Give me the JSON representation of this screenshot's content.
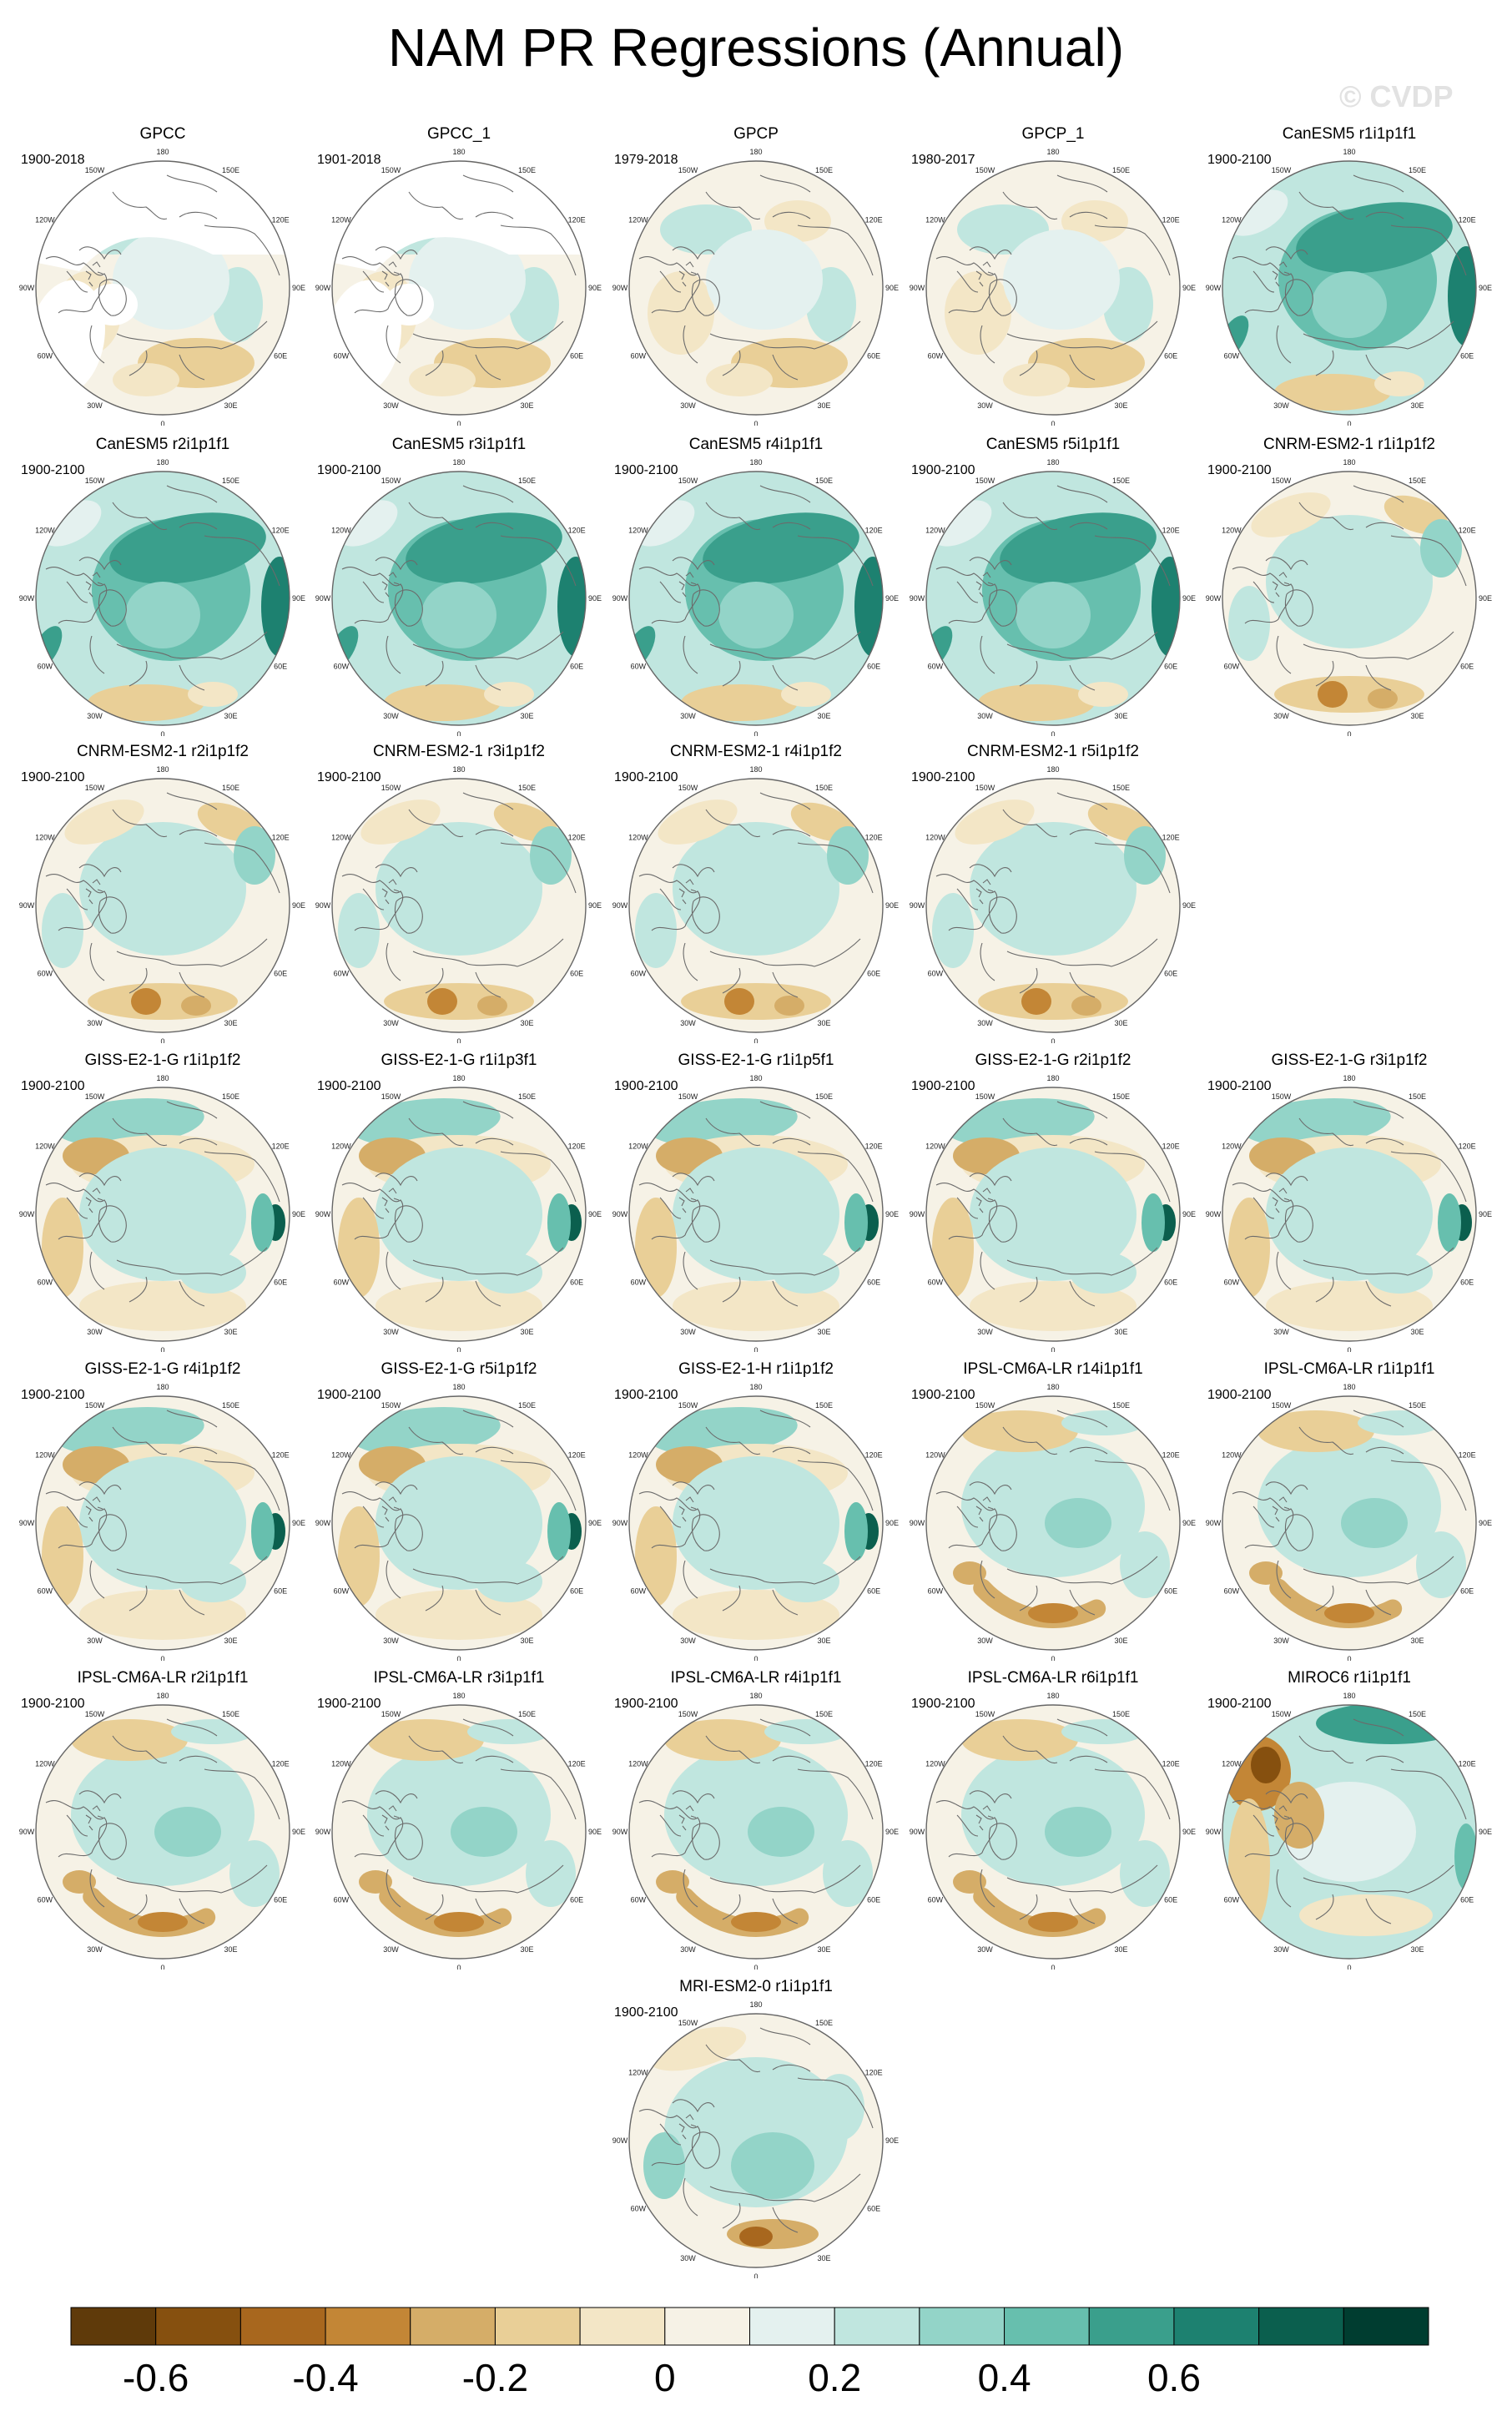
{
  "title": "NAM PR Regressions (Annual)",
  "watermark": "© CVDP",
  "lon_labels": [
    "180",
    "150E",
    "120E",
    "90E",
    "60E",
    "30E",
    "0",
    "30W",
    "60W",
    "90W",
    "120W",
    "150W"
  ],
  "panels": [
    {
      "name": "GPCC",
      "years": "1900-2018",
      "style": "obs"
    },
    {
      "name": "GPCC_1",
      "years": "1901-2018",
      "style": "obs"
    },
    {
      "name": "GPCP",
      "years": "1979-2018",
      "style": "weak"
    },
    {
      "name": "GPCP_1",
      "years": "1980-2017",
      "style": "weak"
    },
    {
      "name": "CanESM5 r1i1p1f1",
      "years": "1900-2100",
      "style": "can"
    },
    {
      "name": "CanESM5 r2i1p1f1",
      "years": "1900-2100",
      "style": "can"
    },
    {
      "name": "CanESM5 r3i1p1f1",
      "years": "1900-2100",
      "style": "can"
    },
    {
      "name": "CanESM5 r4i1p1f1",
      "years": "1900-2100",
      "style": "can"
    },
    {
      "name": "CanESM5 r5i1p1f1",
      "years": "1900-2100",
      "style": "can"
    },
    {
      "name": "CNRM-ESM2-1 r1i1p1f2",
      "years": "1900-2100",
      "style": "cnrm"
    },
    {
      "name": "CNRM-ESM2-1 r2i1p1f2",
      "years": "1900-2100",
      "style": "cnrm"
    },
    {
      "name": "CNRM-ESM2-1 r3i1p1f2",
      "years": "1900-2100",
      "style": "cnrm"
    },
    {
      "name": "CNRM-ESM2-1 r4i1p1f2",
      "years": "1900-2100",
      "style": "cnrm"
    },
    {
      "name": "CNRM-ESM2-1 r5i1p1f2",
      "years": "1900-2100",
      "style": "cnrm"
    },
    {
      "name": "GISS-E2-1-G r1i1p1f2",
      "years": "1900-2100",
      "style": "giss"
    },
    {
      "name": "GISS-E2-1-G r1i1p3f1",
      "years": "1900-2100",
      "style": "giss"
    },
    {
      "name": "GISS-E2-1-G r1i1p5f1",
      "years": "1900-2100",
      "style": "giss"
    },
    {
      "name": "GISS-E2-1-G r2i1p1f2",
      "years": "1900-2100",
      "style": "giss"
    },
    {
      "name": "GISS-E2-1-G r3i1p1f2",
      "years": "1900-2100",
      "style": "giss"
    },
    {
      "name": "GISS-E2-1-G r4i1p1f2",
      "years": "1900-2100",
      "style": "giss"
    },
    {
      "name": "GISS-E2-1-G r5i1p1f2",
      "years": "1900-2100",
      "style": "giss"
    },
    {
      "name": "GISS-E2-1-H r1i1p1f2",
      "years": "1900-2100",
      "style": "giss"
    },
    {
      "name": "IPSL-CM6A-LR r14i1p1f1",
      "years": "1900-2100",
      "style": "ipsl"
    },
    {
      "name": "IPSL-CM6A-LR r1i1p1f1",
      "years": "1900-2100",
      "style": "ipsl"
    },
    {
      "name": "IPSL-CM6A-LR r2i1p1f1",
      "years": "1900-2100",
      "style": "ipsl"
    },
    {
      "name": "IPSL-CM6A-LR r3i1p1f1",
      "years": "1900-2100",
      "style": "ipsl"
    },
    {
      "name": "IPSL-CM6A-LR r4i1p1f1",
      "years": "1900-2100",
      "style": "ipsl"
    },
    {
      "name": "IPSL-CM6A-LR r6i1p1f1",
      "years": "1900-2100",
      "style": "ipsl"
    },
    {
      "name": "MIROC6 r1i1p1f1",
      "years": "1900-2100",
      "style": "miroc"
    },
    {
      "name": "MRI-ESM2-0 r1i1p1f1",
      "years": "1900-2100",
      "style": "mri"
    }
  ],
  "colorbar": {
    "colors": [
      "#5f3a0a",
      "#86500f",
      "#a8671e",
      "#c38636",
      "#d5ad68",
      "#e9cf97",
      "#f3e6c6",
      "#f6f2e6",
      "#e4f1ef",
      "#c0e6df",
      "#93d4c8",
      "#67bfae",
      "#3a9f8c",
      "#1d8170",
      "#0b5f4e",
      "#003d30"
    ],
    "labels": [
      "-0.6",
      "-0.4",
      "-0.2",
      "0",
      "0.2",
      "0.4",
      "0.6"
    ]
  },
  "colors": {
    "coast": "#6b6b6b",
    "rim": "#666666",
    "missing": "#ffffff"
  }
}
